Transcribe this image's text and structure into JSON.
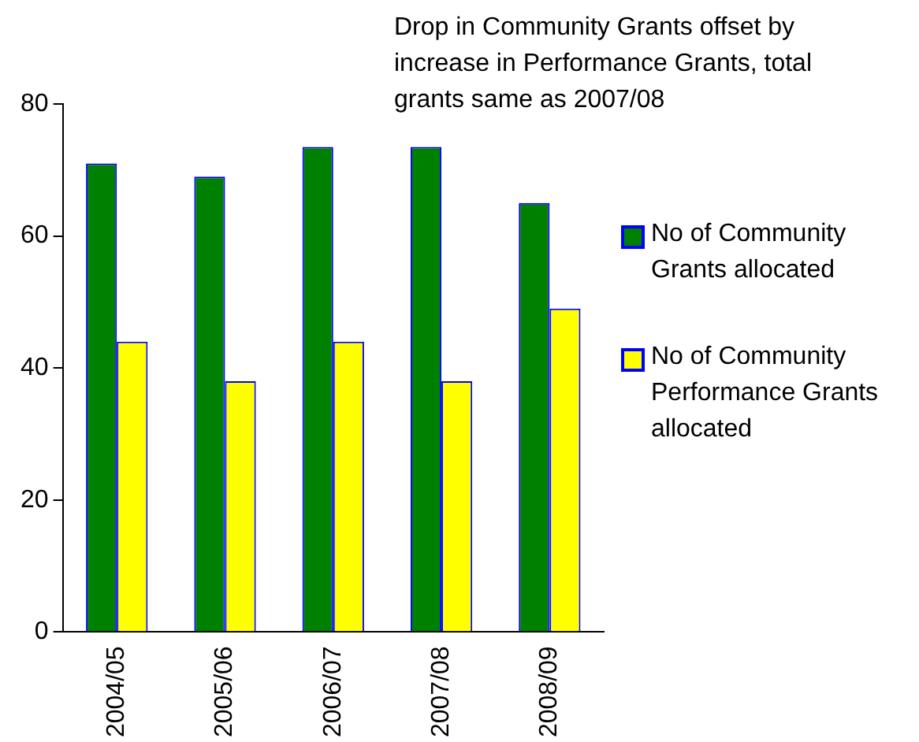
{
  "chart_data": {
    "type": "bar",
    "title": "Drop in Community Grants offset by increase in Performance Grants, total grants same as 2007/08",
    "categories": [
      "2004/05",
      "2005/06",
      "2006/07",
      "2007/08",
      "2008/09"
    ],
    "series": [
      {
        "name": "No of Community Grants allocated",
        "color": "#008000",
        "values": [
          71,
          69,
          73.5,
          73.5,
          65
        ]
      },
      {
        "name": "No of Community Performance Grants allocated",
        "color": "#ffff00",
        "values": [
          44,
          38,
          44,
          38,
          49
        ]
      }
    ],
    "ylim": [
      0,
      80
    ],
    "yticks": [
      0,
      20,
      40,
      60,
      80
    ],
    "grid": false,
    "legend": "right"
  }
}
